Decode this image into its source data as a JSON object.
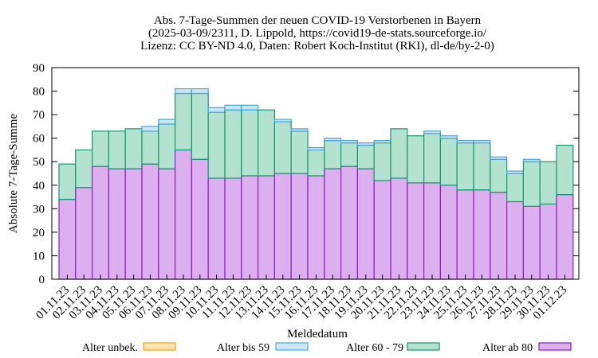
{
  "chart_data": {
    "type": "bar",
    "stacked": true,
    "title_lines": [
      "Abs. 7-Tage-Summen der neuen COVID-19 Verstorbenen in Bayern",
      "(2025-03-09/2311, D. Lippold, https://covid19-de-stats.sourceforge.io/",
      "Lizenz: CC BY-ND 4.0, Daten: Robert Koch-Institut (RKI), dl-de/by-2-0)"
    ],
    "xlabel": "Meldedatum",
    "ylabel": "Absolute 7-Tage-Summe",
    "ylim": [
      0,
      90
    ],
    "yticks": [
      0,
      10,
      20,
      30,
      40,
      50,
      60,
      70,
      80,
      90
    ],
    "categories": [
      "01.11.23",
      "02.11.23",
      "03.11.23",
      "04.11.23",
      "05.11.23",
      "06.11.23",
      "07.11.23",
      "08.11.23",
      "09.11.23",
      "10.11.23",
      "11.11.23",
      "12.11.23",
      "13.11.23",
      "14.11.23",
      "15.11.23",
      "16.11.23",
      "17.11.23",
      "18.11.23",
      "19.11.23",
      "20.11.23",
      "21.11.23",
      "22.11.23",
      "23.11.23",
      "24.11.23",
      "25.11.23",
      "26.11.23",
      "27.11.23",
      "28.11.23",
      "29.11.23",
      "30.11.23",
      "01.12.23"
    ],
    "series": [
      {
        "name": "Alter ab 80",
        "fill": "#dcb0ee",
        "stroke": "#8b1fc0",
        "values": [
          34,
          39,
          48,
          47,
          47,
          49,
          47,
          55,
          51,
          43,
          43,
          44,
          44,
          45,
          45,
          44,
          47,
          48,
          47,
          42,
          43,
          41,
          41,
          40,
          38,
          38,
          37,
          33,
          31,
          32,
          36
        ]
      },
      {
        "name": "Alter 60 - 79",
        "fill": "#b3e2d0",
        "stroke": "#1a9670",
        "values": [
          15,
          16,
          15,
          16,
          17,
          14,
          19,
          24,
          28,
          28,
          29,
          28,
          28,
          22,
          18,
          11,
          12,
          10,
          10,
          16,
          21,
          20,
          21,
          20,
          20,
          20,
          14,
          12,
          19,
          18,
          21
        ]
      },
      {
        "name": "Alter bis 59",
        "fill": "#c9e6f5",
        "stroke": "#4aa7d8",
        "values": [
          0,
          0,
          0,
          0,
          0,
          2,
          2,
          2,
          2,
          2,
          2,
          2,
          0,
          1,
          1,
          1,
          1,
          1,
          1,
          1,
          0,
          0,
          1,
          1,
          1,
          1,
          1,
          1,
          1,
          0,
          0
        ]
      },
      {
        "name": "Alter unbek.",
        "fill": "#fde3ad",
        "stroke": "#e8a21b",
        "values": [
          0,
          0,
          0,
          0,
          0,
          0,
          0,
          0,
          0,
          0,
          0,
          0,
          0,
          0,
          0,
          0,
          0,
          0,
          0,
          0,
          0,
          0,
          0,
          0,
          0,
          0,
          0,
          0,
          0,
          0,
          0
        ]
      }
    ],
    "legend": [
      {
        "label": "Alter unbek.",
        "fill": "#fde3ad",
        "stroke": "#e8a21b"
      },
      {
        "label": "Alter bis 59",
        "fill": "#c9e6f5",
        "stroke": "#4aa7d8"
      },
      {
        "label": "Alter 60 - 79",
        "fill": "#b3e2d0",
        "stroke": "#1a9670"
      },
      {
        "label": "Alter ab 80",
        "fill": "#dcb0ee",
        "stroke": "#8b1fc0"
      }
    ],
    "legend_position": "bottom",
    "grid": false
  }
}
